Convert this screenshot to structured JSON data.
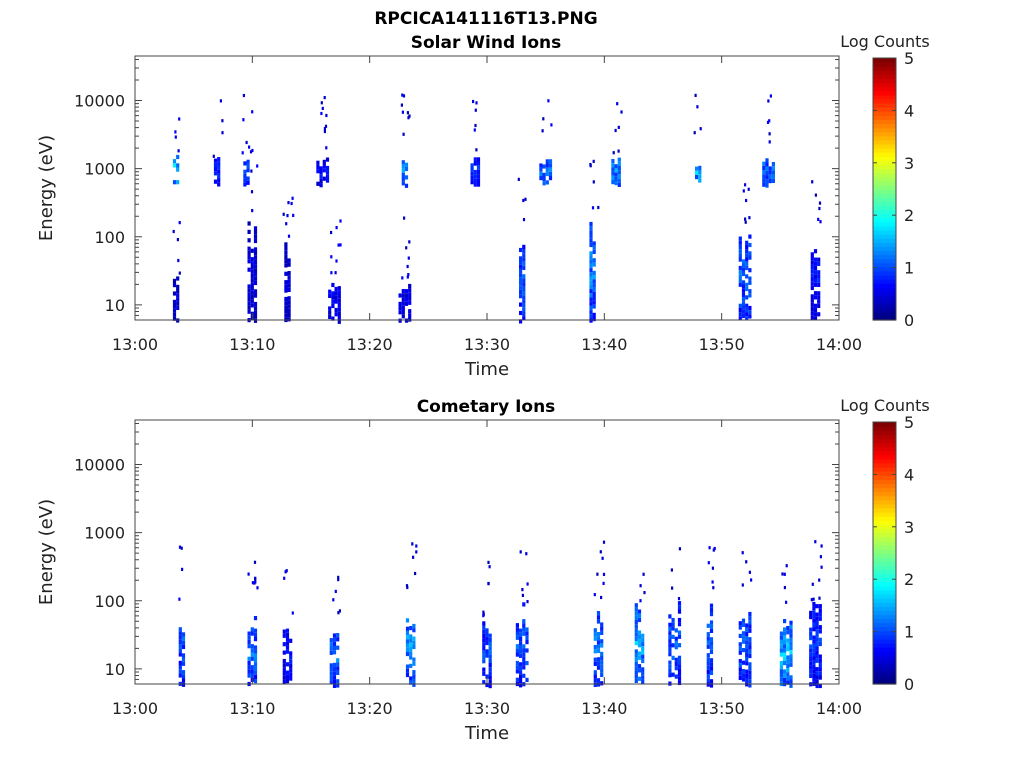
{
  "figure_title": "RPCICA141116T13.PNG",
  "chart_data": [
    {
      "type": "heatmap",
      "title": "Solar Wind Ions",
      "xlabel": "Time",
      "ylabel": "Energy (eV)",
      "y_scale": "log",
      "x_tick_labels": [
        "13:00",
        "13:10",
        "13:20",
        "13:30",
        "13:40",
        "13:50",
        "14:00"
      ],
      "y_tick_labels": [
        "10",
        "100",
        "1000",
        "10000"
      ],
      "xlim": [
        "13:00",
        "14:00"
      ],
      "ylim": [
        6,
        45000
      ],
      "colorbar": {
        "label": "Log Counts",
        "range": [
          0,
          5
        ],
        "tick_labels": [
          "0",
          "1",
          "2",
          "3",
          "4",
          "5"
        ],
        "colormap": "jet"
      },
      "bursts": [
        {
          "t": "13:03.5",
          "e_min": 6,
          "e_max": 28,
          "level": 0.5
        },
        {
          "t": "13:03.5",
          "e_min": 600,
          "e_max": 1800,
          "level": 1.8
        },
        {
          "t": "13:07",
          "e_min": 600,
          "e_max": 1600,
          "level": 1.0
        },
        {
          "t": "13:09.5",
          "e_min": 600,
          "e_max": 1600,
          "level": 1.2
        },
        {
          "t": "13:10",
          "e_min": 6,
          "e_max": 200,
          "level": 0.5
        },
        {
          "t": "13:13",
          "e_min": 6,
          "e_max": 100,
          "level": 0.5
        },
        {
          "t": "13:16",
          "e_min": 600,
          "e_max": 1600,
          "level": 0.8
        },
        {
          "t": "13:17",
          "e_min": 6,
          "e_max": 25,
          "level": 0.7
        },
        {
          "t": "13:23",
          "e_min": 600,
          "e_max": 1600,
          "level": 1.5
        },
        {
          "t": "13:23",
          "e_min": 6,
          "e_max": 25,
          "level": 0.6
        },
        {
          "t": "13:29",
          "e_min": 600,
          "e_max": 1600,
          "level": 1.0
        },
        {
          "t": "13:33",
          "e_min": 6,
          "e_max": 100,
          "level": 1.2
        },
        {
          "t": "13:35",
          "e_min": 600,
          "e_max": 1600,
          "level": 1.5
        },
        {
          "t": "13:39",
          "e_min": 6,
          "e_max": 200,
          "level": 1.4
        },
        {
          "t": "13:41",
          "e_min": 600,
          "e_max": 1600,
          "level": 1.5
        },
        {
          "t": "13:48",
          "e_min": 600,
          "e_max": 1600,
          "level": 1.8
        },
        {
          "t": "13:52",
          "e_min": 6,
          "e_max": 150,
          "level": 1.2
        },
        {
          "t": "13:54",
          "e_min": 600,
          "e_max": 1600,
          "level": 1.4
        },
        {
          "t": "13:58",
          "e_min": 6,
          "e_max": 100,
          "level": 0.8
        }
      ]
    },
    {
      "type": "heatmap",
      "title": "Cometary Ions",
      "xlabel": "Time",
      "ylabel": "Energy (eV)",
      "y_scale": "log",
      "x_tick_labels": [
        "13:00",
        "13:10",
        "13:20",
        "13:30",
        "13:40",
        "13:50",
        "14:00"
      ],
      "y_tick_labels": [
        "10",
        "100",
        "1000",
        "10000"
      ],
      "xlim": [
        "13:00",
        "14:00"
      ],
      "ylim": [
        6,
        45000
      ],
      "colorbar": {
        "label": "Log Counts",
        "range": [
          0,
          5
        ],
        "tick_labels": [
          "0",
          "1",
          "2",
          "3",
          "4",
          "5"
        ],
        "colormap": "jet"
      },
      "bursts": [
        {
          "t": "13:04",
          "e_min": 6,
          "e_max": 100,
          "level": 1.2
        },
        {
          "t": "13:10",
          "e_min": 6,
          "e_max": 60,
          "level": 1.3
        },
        {
          "t": "13:13",
          "e_min": 6,
          "e_max": 60,
          "level": 0.8
        },
        {
          "t": "13:17",
          "e_min": 6,
          "e_max": 50,
          "level": 1.4
        },
        {
          "t": "13:23.5",
          "e_min": 6,
          "e_max": 100,
          "level": 1.5
        },
        {
          "t": "13:30",
          "e_min": 6,
          "e_max": 60,
          "level": 1.1
        },
        {
          "t": "13:33",
          "e_min": 6,
          "e_max": 100,
          "level": 1.2
        },
        {
          "t": "13:39.5",
          "e_min": 6,
          "e_max": 100,
          "level": 1.3
        },
        {
          "t": "13:43",
          "e_min": 6,
          "e_max": 100,
          "level": 1.6
        },
        {
          "t": "13:46",
          "e_min": 6,
          "e_max": 100,
          "level": 1.2
        },
        {
          "t": "13:49",
          "e_min": 6,
          "e_max": 100,
          "level": 1.3
        },
        {
          "t": "13:52",
          "e_min": 6,
          "e_max": 100,
          "level": 1.2
        },
        {
          "t": "13:55.5",
          "e_min": 6,
          "e_max": 60,
          "level": 1.7
        },
        {
          "t": "13:58",
          "e_min": 6,
          "e_max": 100,
          "level": 1.0
        }
      ]
    }
  ]
}
